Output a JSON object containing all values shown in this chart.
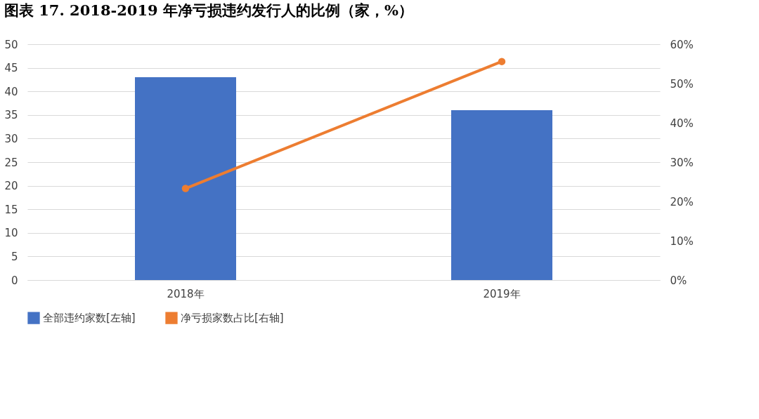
{
  "chart_data": {
    "type": "bar",
    "title": "图表 17. 2018-2019 年净亏损违约发行人的比例（家，%）",
    "categories": [
      "2018年",
      "2019年"
    ],
    "series": [
      {
        "name": "全部违约家数[左轴]",
        "color": "#4472c4",
        "values": [
          43,
          36
        ]
      },
      {
        "name": "净亏损家数占比[右轴]",
        "color": "#ed7d31",
        "type": "line",
        "axis": "y2",
        "marker": "circle",
        "values": [
          23.3,
          55.6
        ]
      }
    ],
    "ylim": [
      0,
      50
    ],
    "yticks": [
      0,
      5,
      10,
      15,
      20,
      25,
      30,
      35,
      40,
      45,
      50
    ],
    "y2lim": [
      0,
      60
    ],
    "y2ticks": [
      {
        "value": 0,
        "label": "0%"
      },
      {
        "value": 10,
        "label": "10%"
      },
      {
        "value": 20,
        "label": "20%"
      },
      {
        "value": 30,
        "label": "30%"
      },
      {
        "value": 40,
        "label": "40%"
      },
      {
        "value": 50,
        "label": "50%"
      },
      {
        "value": 60,
        "label": "60%"
      }
    ],
    "grid": "y",
    "legend": "bottom"
  }
}
